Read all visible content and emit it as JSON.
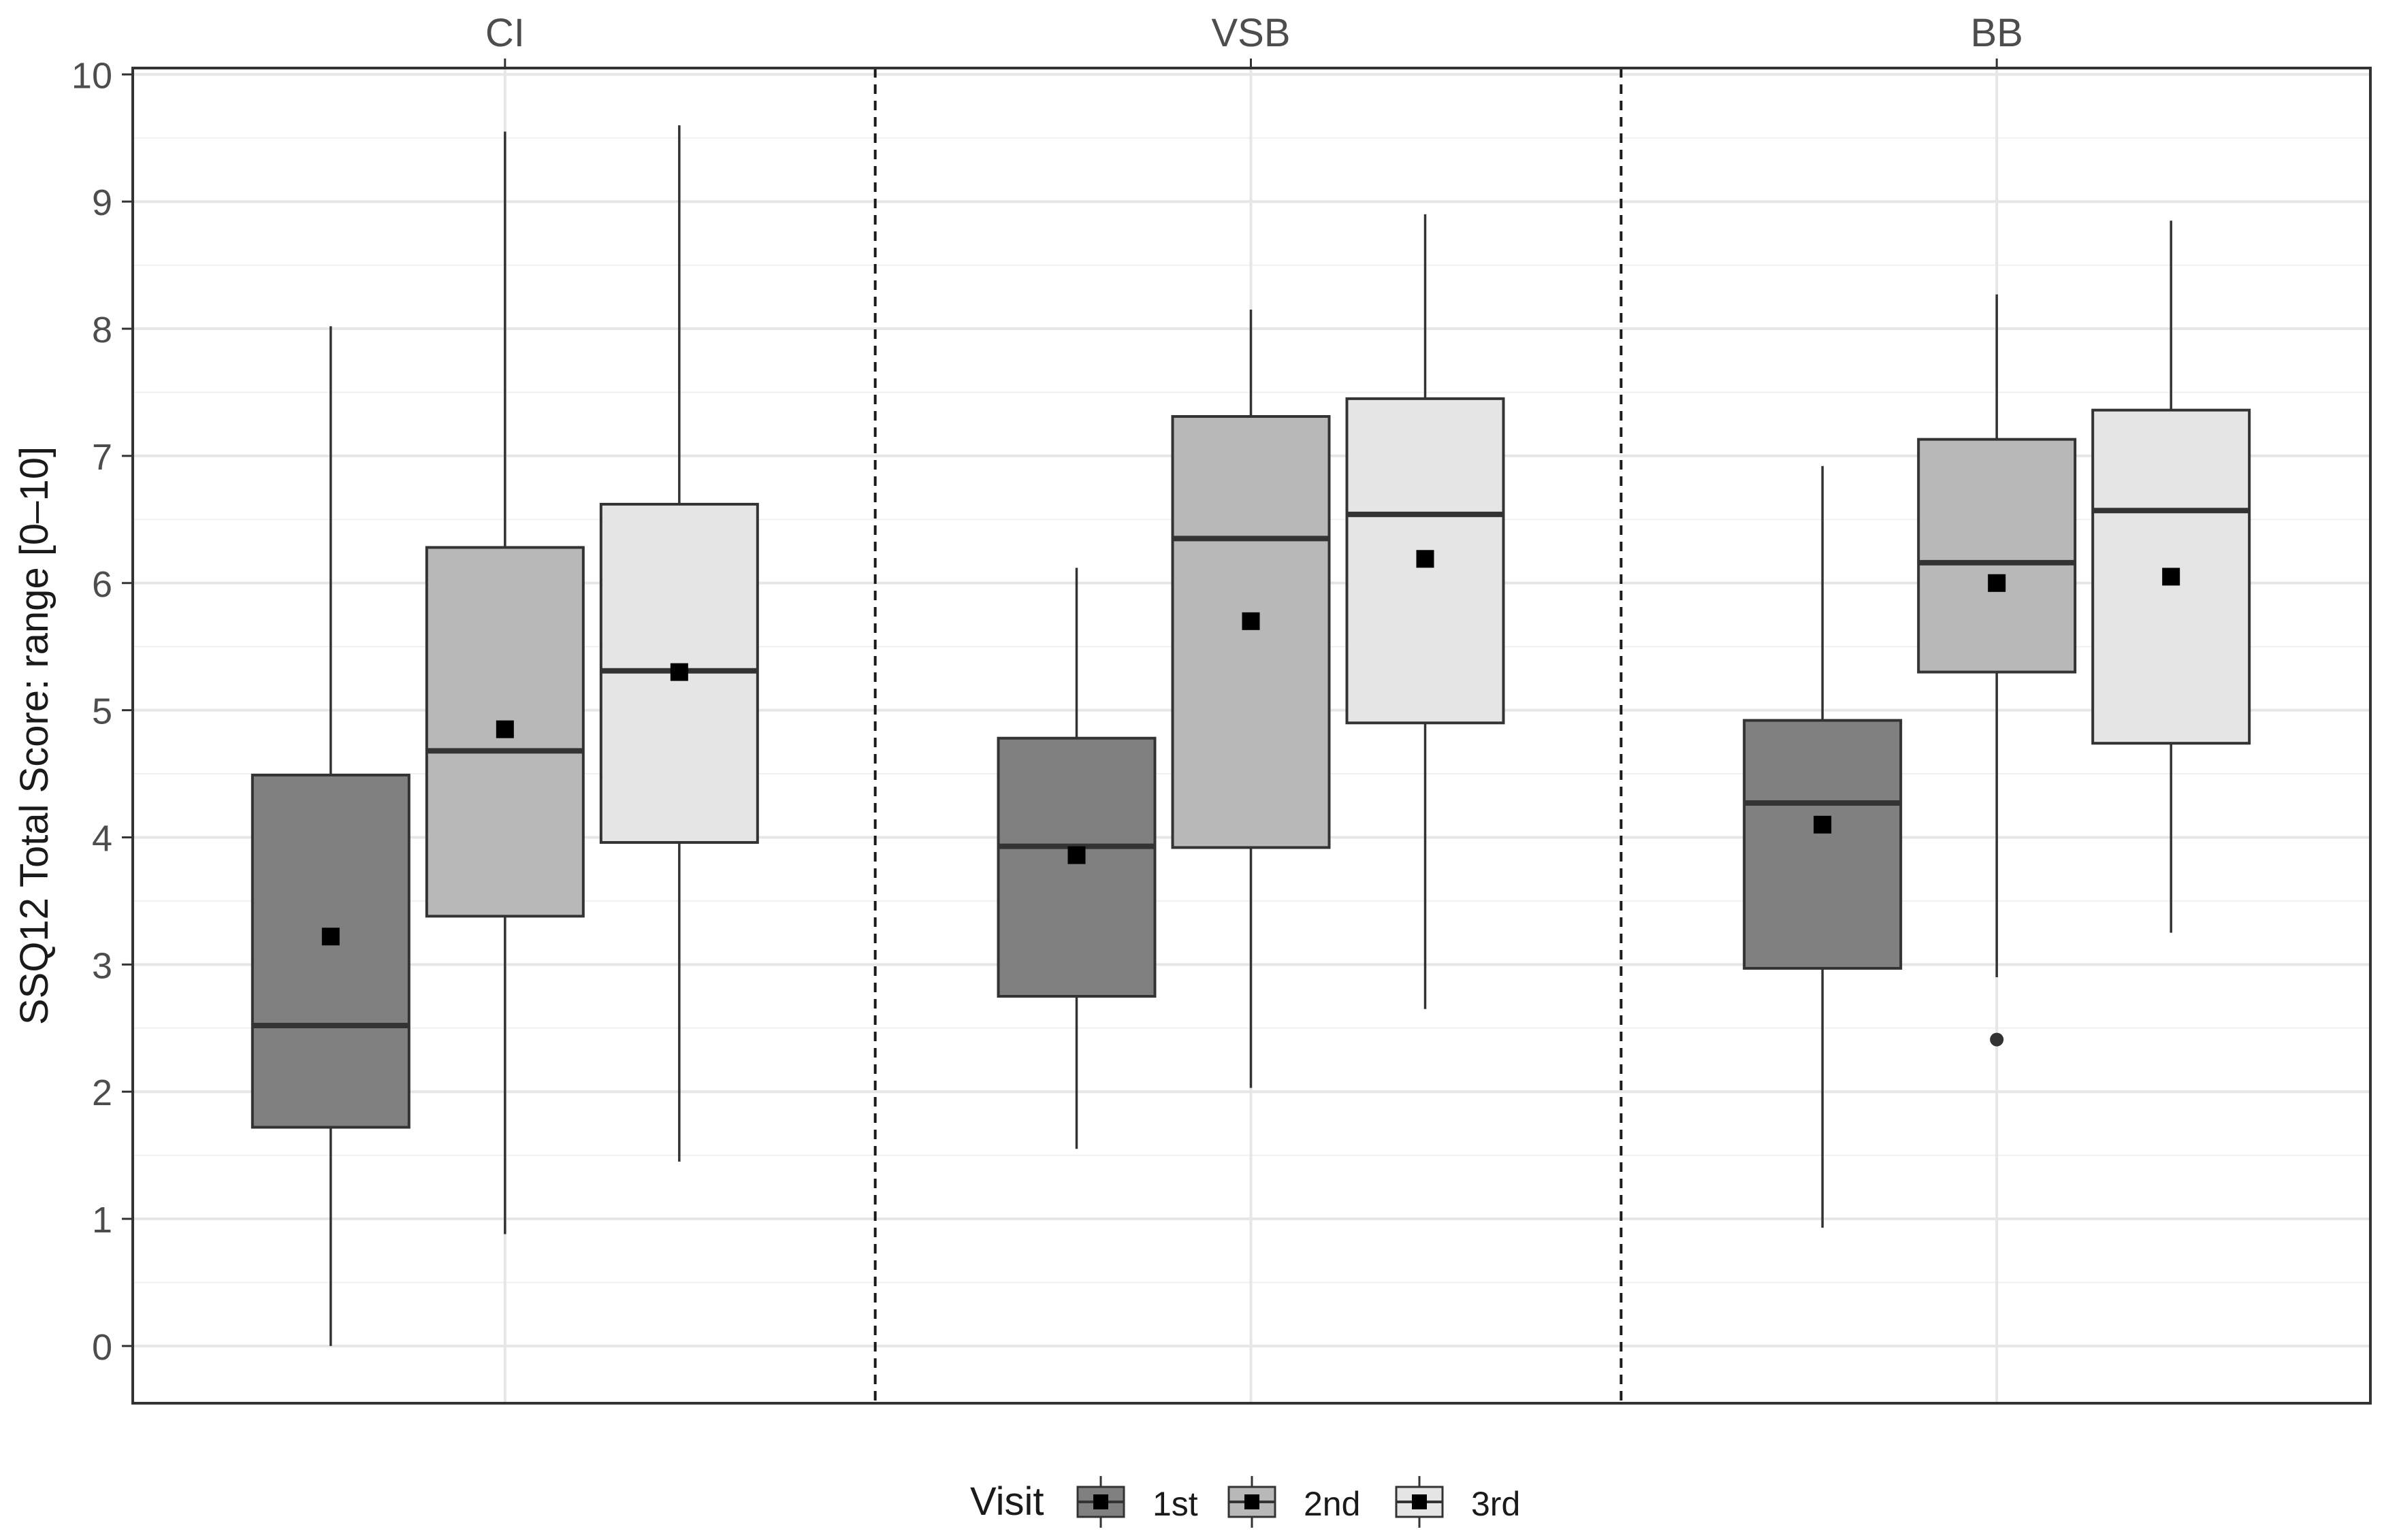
{
  "chart_data": {
    "type": "boxplot",
    "ylabel": "SSQ12 Total Score: range [0–10]",
    "ylim": [
      -0.45,
      10.05
    ],
    "yticks": [
      "0",
      "1",
      "2",
      "3",
      "4",
      "5",
      "6",
      "7",
      "8",
      "9",
      "10"
    ],
    "grid": true,
    "categories": [
      "CI",
      "VSB",
      "BB"
    ],
    "legend": {
      "title": "Visit",
      "position": "bottom",
      "entries": [
        "1st",
        "2nd",
        "3rd"
      ]
    },
    "series": [
      {
        "name": "1st",
        "color": "#808080",
        "boxes": [
          {
            "category": "CI",
            "min": 0.0,
            "q1": 1.72,
            "median": 2.52,
            "q3": 4.49,
            "max": 8.02,
            "mean": 3.22,
            "outliers": []
          },
          {
            "category": "VSB",
            "min": 1.55,
            "q1": 2.75,
            "median": 3.93,
            "q3": 4.78,
            "max": 6.12,
            "mean": 3.86,
            "outliers": []
          },
          {
            "category": "BB",
            "min": 0.93,
            "q1": 2.97,
            "median": 4.27,
            "q3": 4.92,
            "max": 6.92,
            "mean": 4.1,
            "outliers": []
          }
        ]
      },
      {
        "name": "2nd",
        "color": "#b8b8b8",
        "boxes": [
          {
            "category": "CI",
            "min": 0.88,
            "q1": 3.38,
            "median": 4.68,
            "q3": 6.28,
            "max": 9.55,
            "mean": 4.85,
            "outliers": []
          },
          {
            "category": "VSB",
            "min": 2.03,
            "q1": 3.92,
            "median": 6.35,
            "q3": 7.31,
            "max": 8.15,
            "mean": 5.7,
            "outliers": []
          },
          {
            "category": "BB",
            "min": 2.9,
            "q1": 5.3,
            "median": 6.16,
            "q3": 7.13,
            "max": 8.27,
            "mean": 6.0,
            "outliers": [
              2.41
            ]
          }
        ]
      },
      {
        "name": "3rd",
        "color": "#e5e5e5",
        "boxes": [
          {
            "category": "CI",
            "min": 1.45,
            "q1": 3.96,
            "median": 5.31,
            "q3": 6.62,
            "max": 9.6,
            "mean": 5.3,
            "outliers": []
          },
          {
            "category": "VSB",
            "min": 2.65,
            "q1": 4.9,
            "median": 6.54,
            "q3": 7.45,
            "max": 8.9,
            "mean": 6.19,
            "outliers": []
          },
          {
            "category": "BB",
            "min": 3.25,
            "q1": 4.74,
            "median": 6.57,
            "q3": 7.36,
            "max": 8.85,
            "mean": 6.05,
            "outliers": []
          }
        ]
      }
    ]
  }
}
